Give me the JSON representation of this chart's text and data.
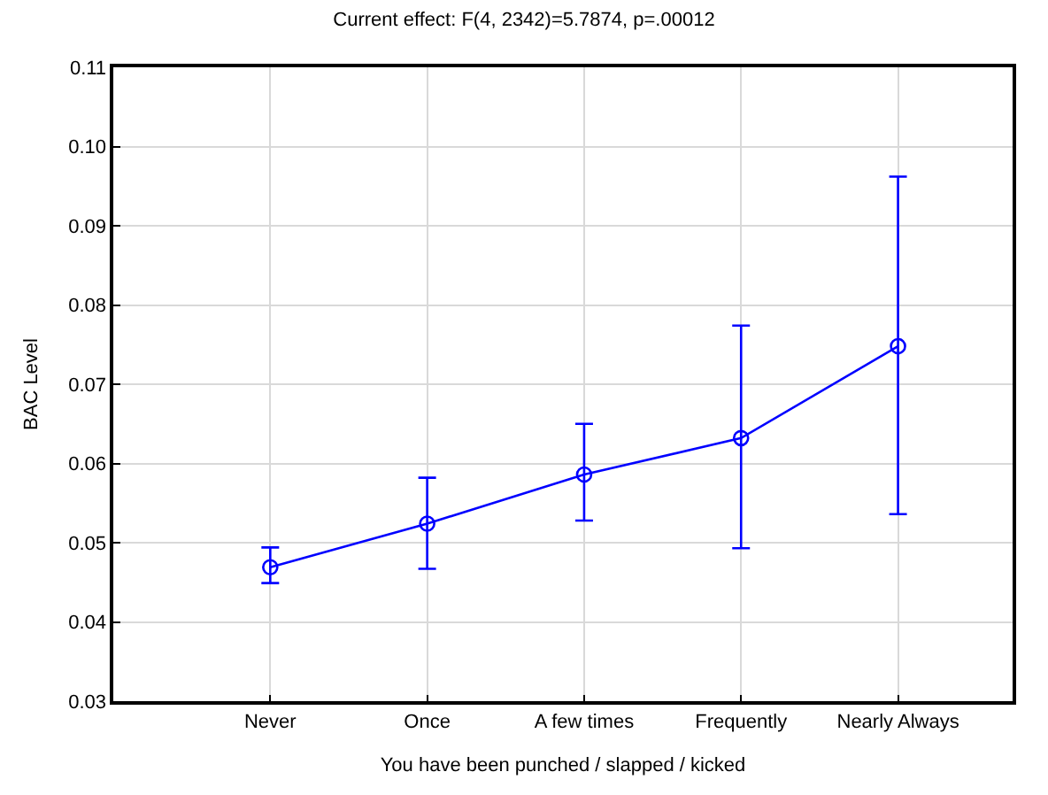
{
  "chart_data": {
    "type": "line",
    "title": "Current effect: F(4, 2342)=5.7874, p=.00012",
    "xlabel": "You have been punched / slapped / kicked",
    "ylabel": "BAC Level",
    "categories": [
      "Never",
      "Once",
      "A few times",
      "Frequently",
      "Nearly Always"
    ],
    "series": [
      {
        "color": "#0000ff",
        "values": [
          0.0469,
          0.0524,
          0.0586,
          0.0632,
          0.0748
        ],
        "errors": [
          [
            0.0449,
            0.0494
          ],
          [
            0.0467,
            0.0582
          ],
          [
            0.0528,
            0.065
          ],
          [
            0.0493,
            0.0774
          ],
          [
            0.0536,
            0.0962
          ]
        ]
      }
    ],
    "ylim": [
      0.03,
      0.11
    ],
    "yticks": [
      0.03,
      0.04,
      0.05,
      0.06,
      0.07,
      0.08,
      0.09,
      {
        "value": 0.1,
        "label": "0.10"
      },
      0.11
    ],
    "grid": true,
    "legend": false,
    "marker": "circle",
    "line_style": "solid"
  }
}
